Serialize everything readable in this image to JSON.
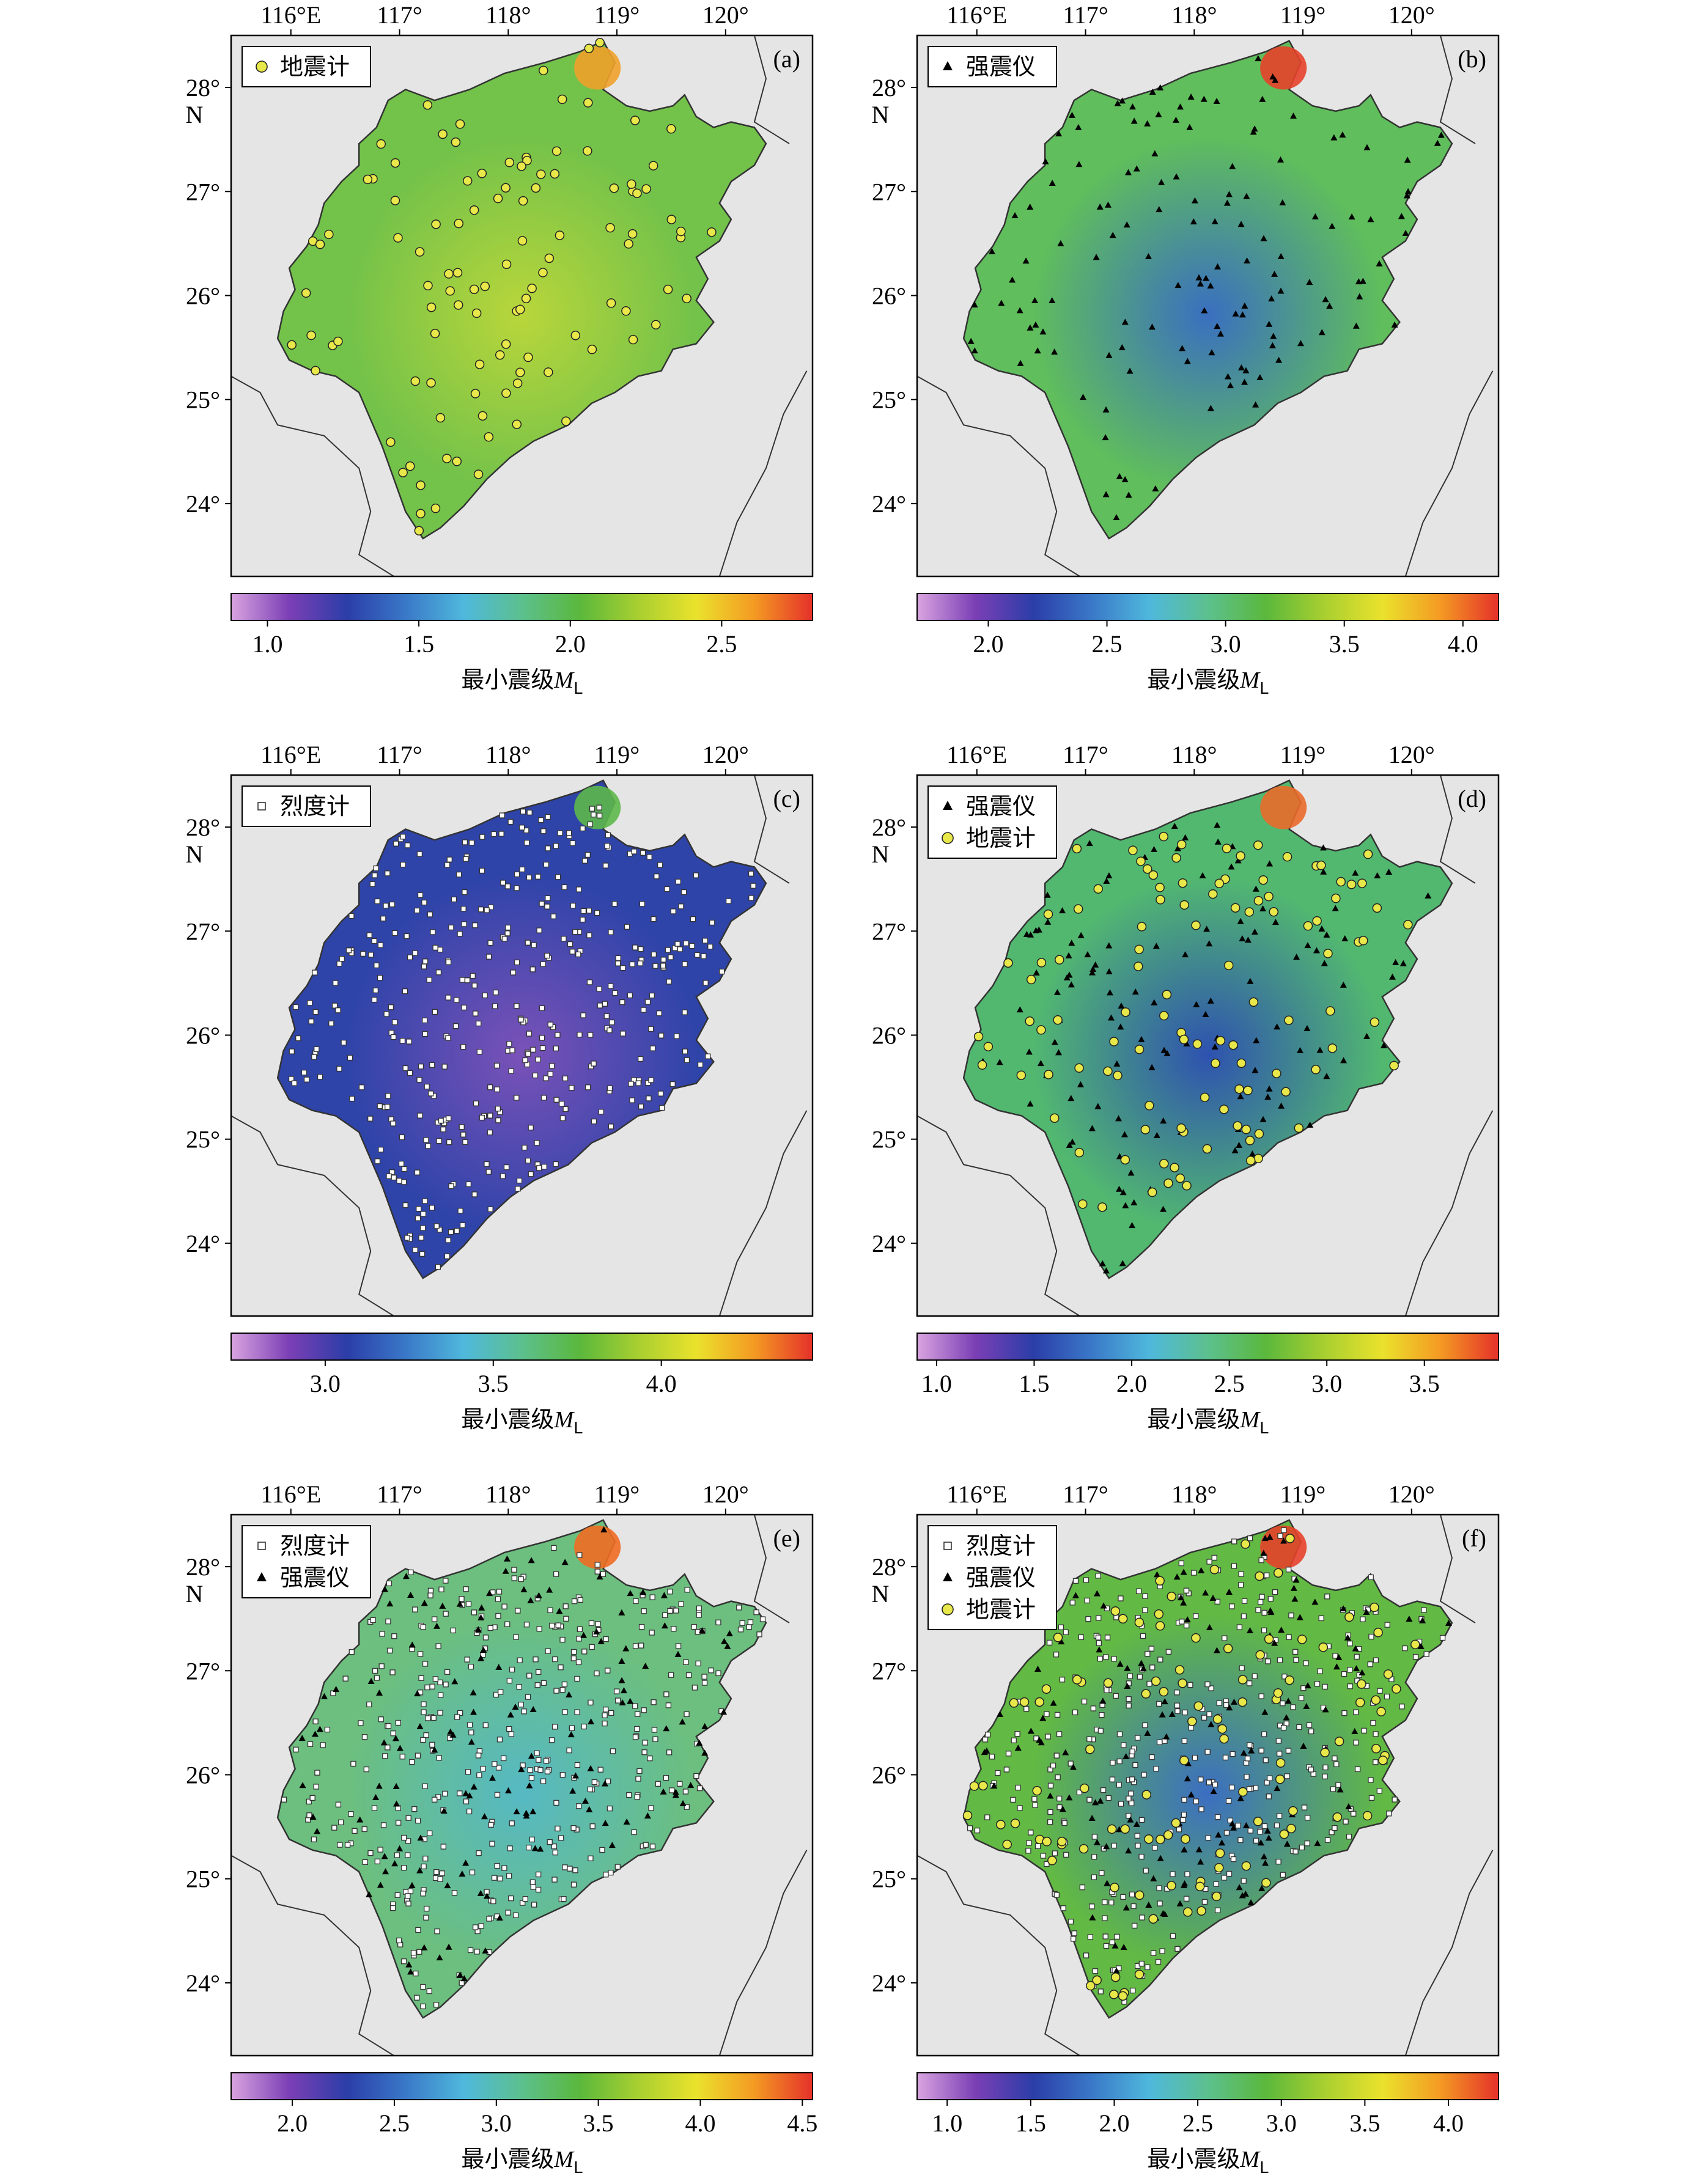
{
  "axes": {
    "top_ticks": [
      "116°E",
      "117°",
      "118°",
      "119°",
      "120°"
    ],
    "left_ticks": [
      "28°",
      "27°",
      "26°",
      "25°",
      "24°"
    ],
    "left_unit": "N",
    "lon_values": [
      116,
      117,
      118,
      119,
      120
    ],
    "lat_values": [
      28,
      27,
      26,
      25,
      24
    ],
    "lon_range": [
      115.45,
      120.8
    ],
    "lat_range": [
      23.3,
      28.5
    ]
  },
  "colorbar_colors": [
    "#d9a4e0",
    "#7b3fb5",
    "#2b3ea8",
    "#3a78c8",
    "#4fb8dc",
    "#5cc08e",
    "#5bb83c",
    "#a8cf30",
    "#eae22c",
    "#f49a23",
    "#e5312a"
  ],
  "legend_labels": {
    "seismometer": "地震计",
    "strong_motion": "强震仪",
    "intensity": "烈度计"
  },
  "panels": [
    {
      "label": "(a)",
      "legend": [
        "地震计"
      ],
      "cb_label": "最小震级",
      "cb_italic": "M",
      "cb_sub": "L",
      "cb_range": [
        0.88,
        2.8
      ],
      "cb_ticks": [
        "1.0",
        "1.5",
        "2.0",
        "2.5"
      ],
      "cb_tick_values": [
        1.0,
        1.5,
        2.0,
        2.5
      ],
      "fill": [
        "#73c24a",
        "#b9d63a",
        "#f0a12a"
      ]
    },
    {
      "label": "(b)",
      "legend": [
        "强震仪"
      ],
      "cb_label": "最小震级",
      "cb_italic": "M",
      "cb_sub": "L",
      "cb_range": [
        1.7,
        4.15
      ],
      "cb_ticks": [
        "2.0",
        "2.5",
        "3.0",
        "3.5",
        "4.0"
      ],
      "cb_tick_values": [
        2.0,
        2.5,
        3.0,
        3.5,
        4.0
      ],
      "fill": [
        "#60be5c",
        "#3a6fc0",
        "#e5412a"
      ]
    },
    {
      "label": "(c)",
      "legend": [
        "烈度计"
      ],
      "cb_label": "最小震级",
      "cb_italic": "M",
      "cb_sub": "L",
      "cb_range": [
        2.72,
        4.45
      ],
      "cb_ticks": [
        "3.0",
        "3.5",
        "4.0"
      ],
      "cb_tick_values": [
        3.0,
        3.5,
        4.0
      ],
      "fill": [
        "#2f44a9",
        "#7a52b8",
        "#5cb84a"
      ]
    },
    {
      "label": "(d)",
      "legend": [
        "强震仪",
        "地震计"
      ],
      "cb_label": "最小震级",
      "cb_italic": "M",
      "cb_sub": "L",
      "cb_range": [
        0.9,
        3.88
      ],
      "cb_ticks": [
        "1.0",
        "1.5",
        "2.0",
        "2.5",
        "3.0",
        "3.5"
      ],
      "cb_tick_values": [
        1.0,
        1.5,
        2.0,
        2.5,
        3.0,
        3.5
      ],
      "fill": [
        "#52b870",
        "#2e52b0",
        "#e96a2a"
      ]
    },
    {
      "label": "(e)",
      "legend": [
        "烈度计",
        "强震仪"
      ],
      "cb_label": "最小震级",
      "cb_italic": "M",
      "cb_sub": "L",
      "cb_range": [
        1.7,
        4.55
      ],
      "cb_ticks": [
        "2.0",
        "2.5",
        "3.0",
        "3.5",
        "4.0",
        "4.5"
      ],
      "cb_tick_values": [
        2.0,
        2.5,
        3.0,
        3.5,
        4.0,
        4.5
      ],
      "fill": [
        "#6cbf7e",
        "#56b9c4",
        "#f06b24"
      ]
    },
    {
      "label": "(f)",
      "legend": [
        "烈度计",
        "强震仪",
        "地震计"
      ],
      "cb_label": "最小震级",
      "cb_italic": "M",
      "cb_sub": "L",
      "cb_range": [
        0.82,
        4.3
      ],
      "cb_ticks": [
        "1.0",
        "1.5",
        "2.0",
        "2.5",
        "3.0",
        "3.5",
        "4.0"
      ],
      "cb_tick_values": [
        1.0,
        1.5,
        2.0,
        2.5,
        3.0,
        3.5,
        4.0
      ],
      "fill": [
        "#62b944",
        "#3b6ec2",
        "#e5412a"
      ]
    }
  ]
}
